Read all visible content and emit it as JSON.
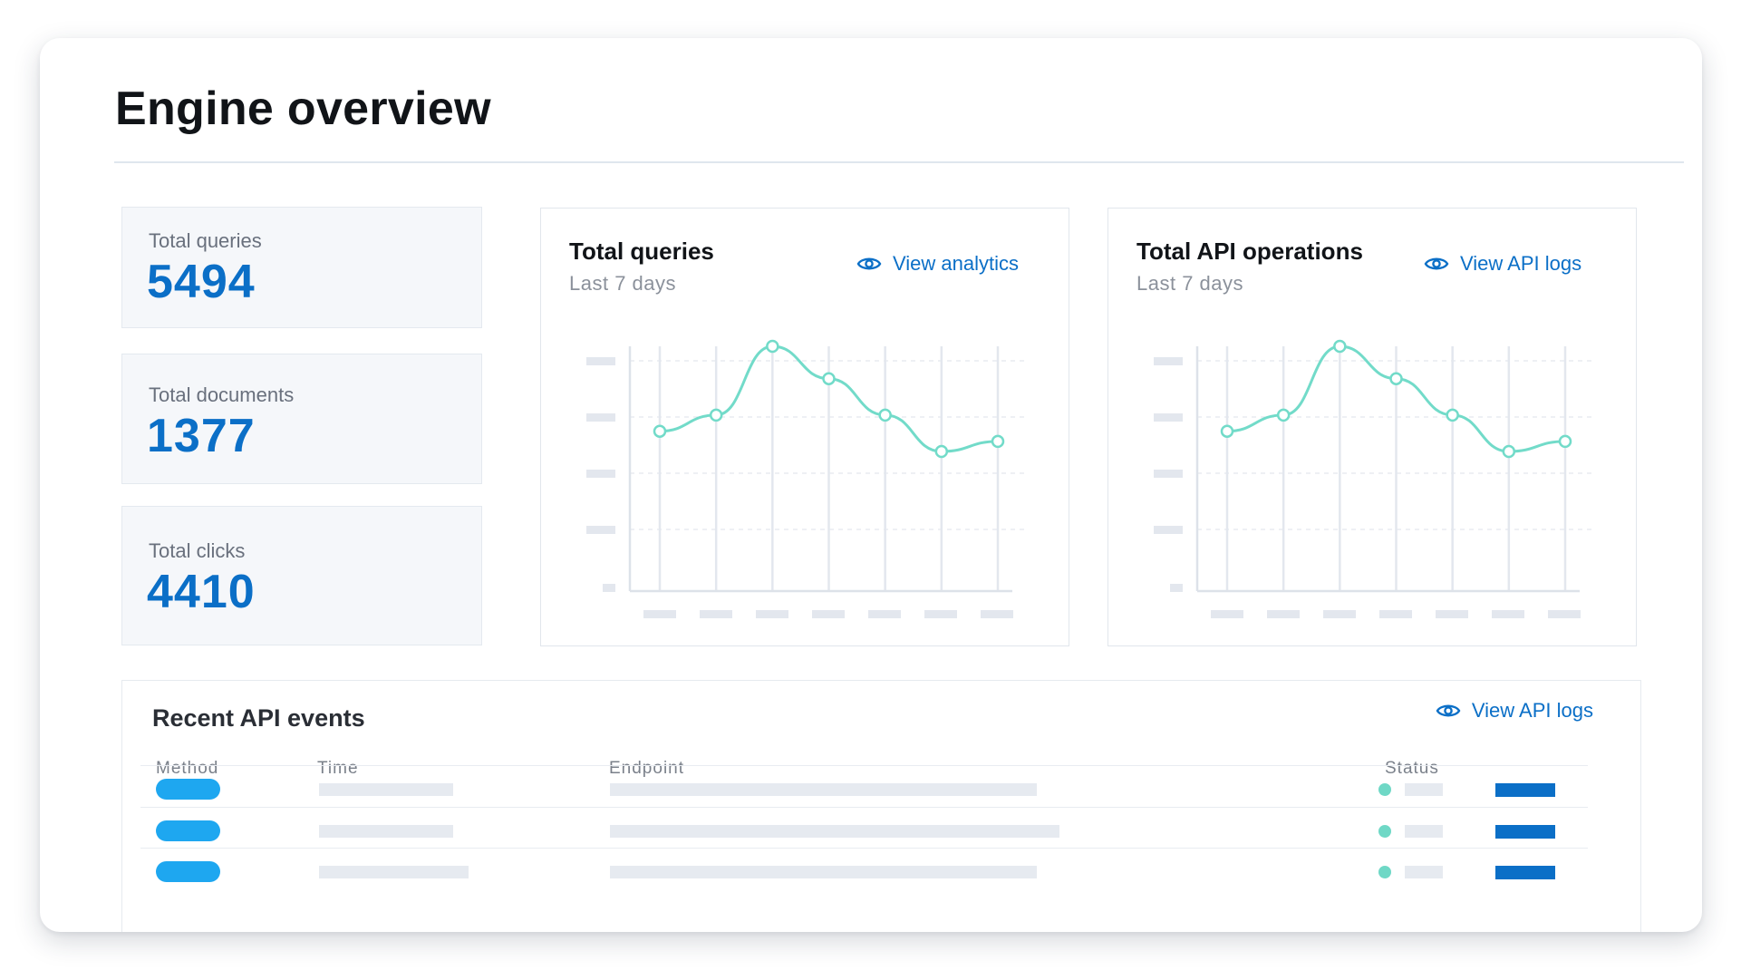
{
  "page": {
    "title": "Engine overview"
  },
  "stats": [
    {
      "label": "Total queries",
      "value": "5494"
    },
    {
      "label": "Total documents",
      "value": "1377"
    },
    {
      "label": "Total clicks",
      "value": "4410"
    }
  ],
  "panels": {
    "queries": {
      "title": "Total queries",
      "subtitle": "Last 7 days",
      "link": "View analytics",
      "link_icon": "eye-icon"
    },
    "api": {
      "title": "Total API operations",
      "subtitle": "Last 7 days",
      "link": "View API logs",
      "link_icon": "eye-icon"
    }
  },
  "chart_data": [
    {
      "type": "line",
      "title": "Total queries",
      "subtitle": "Last 7 days",
      "x": [
        1,
        2,
        3,
        4,
        5,
        6,
        7
      ],
      "series": [
        {
          "values": [
            0.58,
            0.66,
            1.0,
            0.84,
            0.66,
            0.48,
            0.53
          ]
        }
      ],
      "ylim": [
        0,
        1
      ],
      "grid": true,
      "color": "#72dbc9",
      "labels_hidden": true
    },
    {
      "type": "line",
      "title": "Total API operations",
      "subtitle": "Last 7 days",
      "x": [
        1,
        2,
        3,
        4,
        5,
        6,
        7
      ],
      "series": [
        {
          "values": [
            0.58,
            0.66,
            1.0,
            0.84,
            0.66,
            0.48,
            0.53
          ]
        }
      ],
      "ylim": [
        0,
        1
      ],
      "grid": true,
      "color": "#72dbc9",
      "labels_hidden": true
    }
  ],
  "events": {
    "title": "Recent API events",
    "link": "View API logs",
    "link_icon": "eye-icon",
    "columns": [
      "Method",
      "Time",
      "Endpoint",
      "Status"
    ],
    "rows": [
      {
        "time_len": 0.85,
        "endpoint_len": 0.95
      },
      {
        "time_len": 0.85,
        "endpoint_len": 1.0
      },
      {
        "time_len": 0.95,
        "endpoint_len": 0.95
      }
    ]
  },
  "colors": {
    "accent": "#0b6fc7",
    "method_pill": "#1ea7f0",
    "status_ok": "#6fd8c6",
    "line": "#72dbc9"
  }
}
